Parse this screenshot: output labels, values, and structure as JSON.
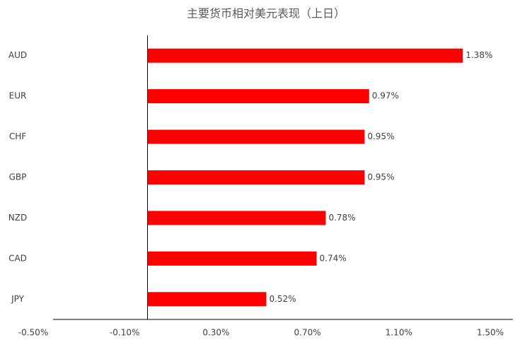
{
  "chart_data": {
    "type": "hbar",
    "title": "主要货币相对美元表现（上日）",
    "categories": [
      "AUD",
      "EUR",
      "CHF",
      "GBP",
      "NZD",
      "CAD",
      "JPY"
    ],
    "values": [
      1.38,
      0.97,
      0.95,
      0.95,
      0.78,
      0.74,
      0.52
    ],
    "value_labels": [
      "1.38%",
      "0.97%",
      "0.95%",
      "0.95%",
      "0.78%",
      "0.74%",
      "0.52%"
    ],
    "color": "#ff0000",
    "xlim": [
      -0.5,
      1.5
    ],
    "xticks": [
      {
        "value": -0.5,
        "label": "-0.50%"
      },
      {
        "value": -0.1,
        "label": "-0.10%"
      },
      {
        "value": 0.3,
        "label": "0.30%"
      },
      {
        "value": 0.7,
        "label": "0.70%"
      },
      {
        "value": 1.1,
        "label": "1.10%"
      },
      {
        "value": 1.5,
        "label": "1.50%"
      }
    ],
    "grid": false
  }
}
